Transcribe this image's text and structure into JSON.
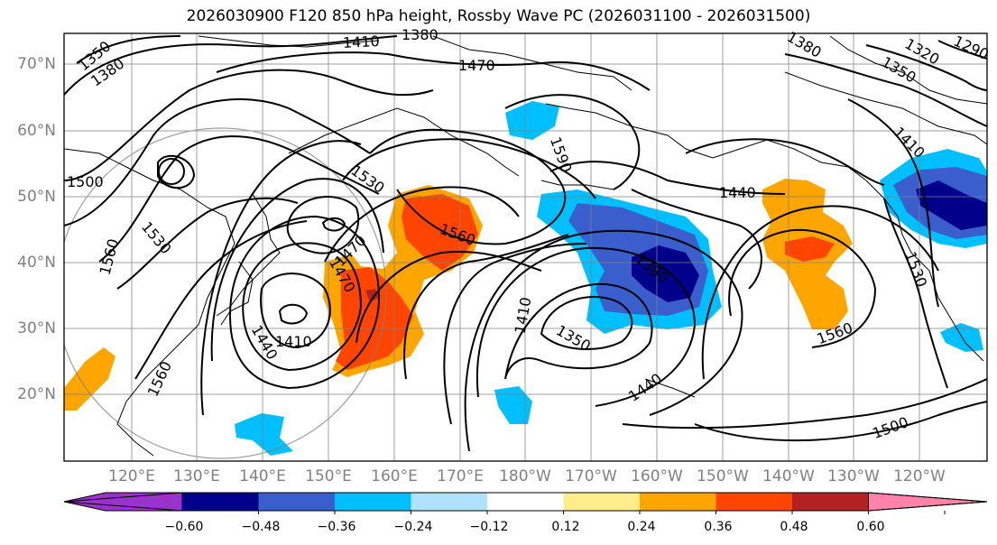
{
  "title": "2026030900 F120 850 hPa height, Rossby Wave PC (2026031100 - 2026031500)",
  "lat_labels": [
    "70°N",
    "60°N",
    "50°N",
    "40°N",
    "30°N",
    "20°N"
  ],
  "lon_labels": [
    "120°E",
    "130°E",
    "140°E",
    "150°E",
    "160°E",
    "170°E",
    "180°W",
    "170°W",
    "160°W",
    "150°W",
    "140°W",
    "130°W",
    "120°W"
  ],
  "contour_labels": [
    "1350",
    "1380",
    "1410",
    "1380",
    "1470",
    "1380",
    "1320",
    "1290",
    "1350",
    "1500",
    "1530",
    "1590",
    "1410",
    "1440",
    "1560",
    "1530",
    "1560",
    "1470",
    "1470",
    "1380",
    "1410",
    "1440",
    "1410",
    "1350",
    "1440",
    "1560",
    "1560",
    "1500",
    "1530"
  ],
  "colorbar": {
    "ticks": [
      "−0.60",
      "−0.48",
      "−0.36",
      "−0.24",
      "−0.12",
      "0.12",
      "0.24",
      "0.36",
      "0.48",
      "0.60"
    ],
    "colors": [
      "#9a32cd",
      "#00008b",
      "#3a5fcd",
      "#00bfff",
      "#b0e2ff",
      "#ffffff",
      "#ffec8b",
      "#ffa500",
      "#ff4500",
      "#b22222",
      "#ff82ab"
    ]
  }
}
